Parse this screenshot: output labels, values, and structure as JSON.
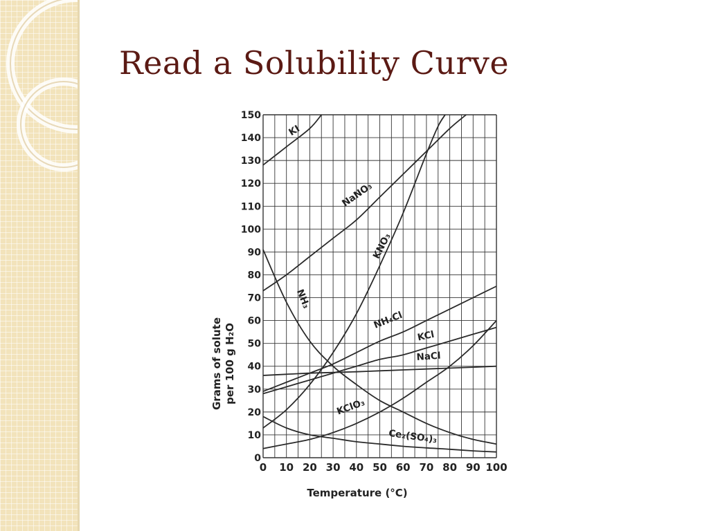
{
  "slide": {
    "title": "Read a Solubility Curve"
  },
  "chart_data": {
    "type": "line",
    "xlabel": "Temperature (°C)",
    "ylabel_lines": [
      "Grams of solute",
      "per 100 g H₂O"
    ],
    "xlim": [
      0,
      100
    ],
    "ylim": [
      0,
      150
    ],
    "xticks": [
      "0",
      "10",
      "20",
      "30",
      "40",
      "50",
      "60",
      "70",
      "80",
      "90",
      "100"
    ],
    "yticks": [
      "0",
      "10",
      "20",
      "30",
      "40",
      "50",
      "60",
      "70",
      "80",
      "90",
      "100",
      "110",
      "120",
      "130",
      "140",
      "150"
    ],
    "grid": true,
    "series": [
      {
        "name": "KI",
        "x": [
          0,
          10,
          20,
          25
        ],
        "y": [
          128,
          136,
          144,
          150
        ]
      },
      {
        "name": "NaNO₃",
        "x": [
          0,
          10,
          20,
          30,
          40,
          50,
          60,
          70,
          80,
          87
        ],
        "y": [
          73,
          80,
          88,
          96,
          104,
          114,
          124,
          134,
          144,
          150
        ]
      },
      {
        "name": "KNO₃",
        "x": [
          0,
          10,
          20,
          30,
          40,
          50,
          60,
          70,
          75,
          78
        ],
        "y": [
          13,
          21,
          32,
          46,
          63,
          84,
          107,
          133,
          145,
          150
        ]
      },
      {
        "name": "NH₃",
        "x": [
          0,
          10,
          20,
          30,
          40,
          50,
          60,
          70,
          80,
          90,
          100
        ],
        "y": [
          91,
          68,
          51,
          40,
          32,
          25,
          20,
          15,
          11,
          8,
          6
        ]
      },
      {
        "name": "NH₄Cl",
        "x": [
          0,
          10,
          20,
          30,
          40,
          50,
          60,
          70,
          80,
          90,
          100
        ],
        "y": [
          29,
          33,
          37,
          41,
          46,
          51,
          55,
          60,
          65,
          70,
          75
        ]
      },
      {
        "name": "KCl",
        "x": [
          0,
          10,
          20,
          30,
          40,
          50,
          60,
          70,
          80,
          90,
          100
        ],
        "y": [
          28,
          31,
          34,
          37,
          40,
          43,
          45,
          48,
          51,
          54,
          57
        ]
      },
      {
        "name": "NaCl",
        "x": [
          0,
          10,
          20,
          30,
          40,
          50,
          60,
          70,
          80,
          90,
          100
        ],
        "y": [
          36,
          36.5,
          37,
          37.3,
          37.6,
          38,
          38.4,
          38.8,
          39.2,
          39.6,
          40
        ]
      },
      {
        "name": "KClO₃",
        "x": [
          0,
          10,
          20,
          30,
          40,
          50,
          60,
          70,
          80,
          90,
          100
        ],
        "y": [
          4,
          6,
          8,
          11,
          15,
          20,
          26,
          33,
          40,
          49,
          60
        ]
      },
      {
        "name": "Ce₂(SO₄)₃",
        "x": [
          0,
          10,
          20,
          30,
          40,
          50,
          60,
          70,
          80,
          90,
          100
        ],
        "y": [
          18,
          13,
          10,
          8.5,
          7,
          6,
          5,
          4.3,
          3.7,
          3,
          2.5
        ]
      }
    ],
    "annotations": [
      "KI",
      "NaNO₃",
      "KNO₃",
      "NH₃",
      "NH₄Cl",
      "KCl",
      "NaCl",
      "KClO₃",
      "Ce₂(SO₄)₃"
    ]
  }
}
